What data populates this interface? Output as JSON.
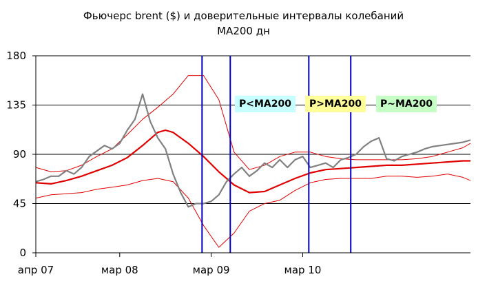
{
  "title": "Фьючерс brent ($) и доверительные интервалы колебаний",
  "subtitle": "MA200 дн",
  "colors": {
    "price": "#808080",
    "ma200": "#e00000",
    "bands": "#e00000",
    "grid": "#000000",
    "markers": "#0000c0"
  },
  "region_labels": [
    "P<MA200",
    "P>MA200",
    "P~MA200"
  ],
  "region_colors": [
    "#c6ffff",
    "#ffff9a",
    "#c6ffc6"
  ],
  "chart_data": {
    "type": "line",
    "ylim": [
      0,
      180
    ],
    "yticks": [
      0,
      45,
      90,
      135,
      180
    ],
    "grid": "horizontal",
    "xlim": [
      0,
      57
    ],
    "xticks": [
      {
        "x": 0,
        "label": "апр 07"
      },
      {
        "x": 11,
        "label": "мар 08"
      },
      {
        "x": 23,
        "label": "мар 09"
      },
      {
        "x": 35,
        "label": "мар 10"
      }
    ],
    "vertical_markers": [
      21.8,
      25.5,
      35.8,
      41.3
    ],
    "series": [
      {
        "kind": "price",
        "x": [
          0,
          1,
          2,
          3,
          4,
          5,
          6,
          7,
          8,
          9,
          10,
          11,
          12,
          13,
          14,
          15,
          16,
          17,
          18,
          19,
          20,
          21,
          22,
          23,
          24,
          25,
          26,
          27,
          28,
          29,
          30,
          31,
          32,
          33,
          34,
          35,
          36,
          37,
          38,
          39,
          40,
          41,
          42,
          43,
          44,
          45,
          46,
          47,
          48,
          49,
          50,
          51,
          52,
          53,
          54,
          55,
          56,
          57
        ],
        "values": [
          65,
          67,
          70,
          70,
          75,
          72,
          78,
          88,
          93,
          98,
          95,
          100,
          112,
          122,
          145,
          120,
          105,
          95,
          72,
          55,
          42,
          45,
          45,
          47,
          53,
          65,
          72,
          78,
          70,
          75,
          82,
          78,
          85,
          78,
          85,
          88,
          78,
          80,
          82,
          78,
          85,
          87,
          90,
          97,
          102,
          105,
          86,
          84,
          88,
          90,
          92,
          95,
          97,
          98,
          99,
          100,
          101,
          103
        ]
      },
      {
        "kind": "ma200",
        "x": [
          0,
          2,
          4,
          6,
          8,
          10,
          12,
          14,
          16,
          17,
          18,
          20,
          22,
          24,
          26,
          28,
          30,
          32,
          34,
          36,
          38,
          40,
          42,
          44,
          46,
          48,
          50,
          52,
          54,
          56,
          57
        ],
        "values": [
          64,
          63,
          66,
          70,
          75,
          80,
          87,
          98,
          110,
          112,
          110,
          100,
          88,
          74,
          62,
          55,
          56,
          62,
          68,
          73,
          76,
          77,
          78,
          79,
          80,
          80,
          81,
          82,
          83,
          84,
          84
        ]
      },
      {
        "kind": "upper-band",
        "x": [
          0,
          2,
          4,
          6,
          8,
          10,
          12,
          14,
          16,
          18,
          20,
          22,
          24,
          26,
          28,
          30,
          32,
          34,
          36,
          38,
          40,
          42,
          44,
          46,
          48,
          50,
          52,
          54,
          56,
          57
        ],
        "values": [
          78,
          74,
          75,
          80,
          88,
          95,
          108,
          122,
          133,
          145,
          162,
          162,
          140,
          92,
          76,
          80,
          88,
          92,
          92,
          88,
          86,
          85,
          85,
          85,
          85,
          86,
          88,
          92,
          96,
          100
        ]
      },
      {
        "kind": "lower-band",
        "x": [
          0,
          2,
          4,
          6,
          8,
          10,
          12,
          14,
          16,
          18,
          20,
          22,
          24,
          26,
          28,
          30,
          32,
          34,
          36,
          38,
          40,
          42,
          44,
          46,
          48,
          50,
          52,
          54,
          56,
          57
        ],
        "values": [
          50,
          53,
          54,
          55,
          58,
          60,
          62,
          66,
          68,
          65,
          50,
          25,
          5,
          18,
          38,
          45,
          48,
          57,
          64,
          67,
          68,
          68,
          68,
          70,
          70,
          69,
          70,
          72,
          69,
          66
        ]
      }
    ]
  }
}
